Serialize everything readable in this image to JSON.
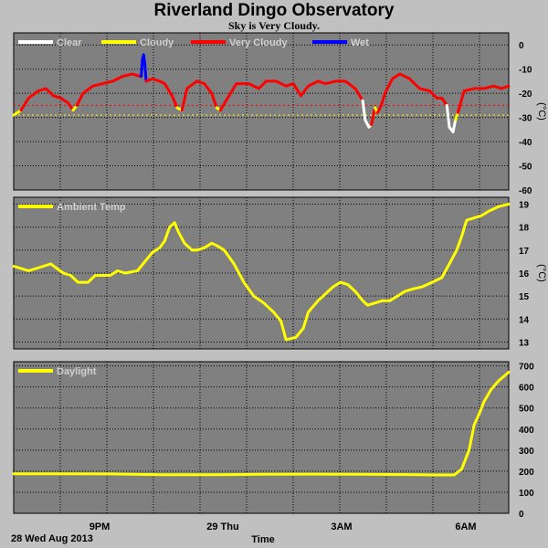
{
  "title": "Riverland Dingo Observatory",
  "subtitle": "Sky is Very Cloudy.",
  "footer": {
    "date_label": "28 Wed Aug 2013",
    "x_axis_title": "Time"
  },
  "colors": {
    "background": "#c0c0c0",
    "plot_bg": "#808080",
    "grid": "#000000",
    "clear": "#ffffff",
    "cloudy": "#ffff00",
    "very_cloudy": "#ff0000",
    "wet": "#0000ff"
  },
  "chart_data": [
    {
      "type": "line",
      "panel": "sky",
      "ylabel": "(°C)",
      "ylim": [
        -60,
        5
      ],
      "yticks": [
        0,
        -10,
        -20,
        -30,
        -40,
        -50,
        -60
      ],
      "legend": [
        "Clear",
        "Cloudy",
        "Very Cloudy",
        "Wet"
      ],
      "legend_colors": [
        "#ffffff",
        "#ffff00",
        "#ff0000",
        "#0000ff"
      ],
      "thresholds": [
        {
          "value": -25,
          "color": "#ff0000"
        },
        {
          "value": -29,
          "color": "#ffff00"
        }
      ],
      "series": [
        {
          "color": "#ffff00",
          "points": [
            [
              0,
              -29
            ],
            [
              0.3,
              -27
            ]
          ]
        },
        {
          "color": "#ff0000",
          "points": [
            [
              0.3,
              -27
            ],
            [
              0.6,
              -22
            ],
            [
              1.0,
              -19
            ],
            [
              1.3,
              -18
            ],
            [
              1.6,
              -21
            ],
            [
              1.9,
              -22
            ],
            [
              2.2,
              -24
            ],
            [
              2.4,
              -27
            ]
          ]
        },
        {
          "color": "#ffff00",
          "points": [
            [
              2.4,
              -27
            ],
            [
              2.55,
              -25
            ]
          ]
        },
        {
          "color": "#ff0000",
          "points": [
            [
              2.55,
              -25
            ],
            [
              2.8,
              -20
            ],
            [
              3.2,
              -17
            ],
            [
              3.6,
              -16
            ],
            [
              4.0,
              -15
            ],
            [
              4.4,
              -13
            ],
            [
              4.8,
              -12
            ],
            [
              5.1,
              -13
            ]
          ]
        },
        {
          "color": "#0000ff",
          "points": [
            [
              5.15,
              -13
            ],
            [
              5.2,
              -6
            ],
            [
              5.25,
              -4
            ],
            [
              5.3,
              -8
            ],
            [
              5.35,
              -15
            ]
          ]
        },
        {
          "color": "#ff0000",
          "points": [
            [
              5.35,
              -15
            ],
            [
              5.6,
              -14
            ],
            [
              5.9,
              -15
            ],
            [
              6.1,
              -16
            ],
            [
              6.4,
              -21
            ],
            [
              6.6,
              -26
            ]
          ]
        },
        {
          "color": "#ffff00",
          "points": [
            [
              6.6,
              -26
            ],
            [
              6.8,
              -27
            ]
          ]
        },
        {
          "color": "#ff0000",
          "points": [
            [
              6.8,
              -27
            ],
            [
              7.0,
              -18
            ],
            [
              7.4,
              -15
            ],
            [
              7.7,
              -16
            ],
            [
              8.0,
              -20
            ],
            [
              8.2,
              -26
            ]
          ]
        },
        {
          "color": "#ffff00",
          "points": [
            [
              8.2,
              -26
            ],
            [
              8.35,
              -27
            ]
          ]
        },
        {
          "color": "#ff0000",
          "points": [
            [
              8.35,
              -27
            ],
            [
              8.7,
              -21
            ],
            [
              9.0,
              -16
            ],
            [
              9.5,
              -16
            ],
            [
              9.9,
              -18
            ],
            [
              10.2,
              -15
            ],
            [
              10.6,
              -15
            ],
            [
              11.0,
              -17
            ],
            [
              11.3,
              -16
            ],
            [
              11.6,
              -21
            ],
            [
              11.9,
              -17
            ],
            [
              12.3,
              -15
            ],
            [
              12.6,
              -16
            ],
            [
              13.0,
              -15
            ],
            [
              13.4,
              -15
            ],
            [
              13.8,
              -18
            ],
            [
              14.1,
              -23
            ]
          ]
        },
        {
          "color": "#ffffff",
          "points": [
            [
              14.1,
              -23
            ],
            [
              14.2,
              -31
            ],
            [
              14.35,
              -34
            ],
            [
              14.45,
              -33
            ]
          ]
        },
        {
          "color": "#ff0000",
          "points": [
            [
              14.45,
              -33
            ],
            [
              14.6,
              -26
            ]
          ]
        },
        {
          "color": "#ffff00",
          "points": [
            [
              14.6,
              -26
            ],
            [
              14.7,
              -28
            ]
          ]
        },
        {
          "color": "#ff0000",
          "points": [
            [
              14.7,
              -28
            ],
            [
              14.85,
              -25
            ],
            [
              15.0,
              -20
            ],
            [
              15.3,
              -14
            ],
            [
              15.6,
              -12
            ],
            [
              16.0,
              -14
            ],
            [
              16.4,
              -18
            ],
            [
              16.8,
              -19
            ],
            [
              17.1,
              -22
            ],
            [
              17.3,
              -22
            ],
            [
              17.5,
              -25
            ]
          ]
        },
        {
          "color": "#ffffff",
          "points": [
            [
              17.5,
              -25
            ],
            [
              17.6,
              -34
            ],
            [
              17.75,
              -36
            ],
            [
              17.85,
              -31
            ]
          ]
        },
        {
          "color": "#ffff00",
          "points": [
            [
              17.85,
              -31
            ],
            [
              17.95,
              -28
            ]
          ]
        },
        {
          "color": "#ff0000",
          "points": [
            [
              17.95,
              -28
            ],
            [
              18.2,
              -19
            ],
            [
              18.6,
              -18
            ],
            [
              19.0,
              -18
            ],
            [
              19.4,
              -17
            ],
            [
              19.7,
              -18
            ],
            [
              20.0,
              -17
            ]
          ]
        }
      ]
    },
    {
      "type": "line",
      "panel": "ambient",
      "ylabel": "(°C)",
      "ylim": [
        12.7,
        19.3
      ],
      "yticks": [
        19,
        18,
        17,
        16,
        15,
        14,
        13
      ],
      "legend": [
        "Ambient Temp"
      ],
      "legend_colors": [
        "#ffff00"
      ],
      "series": [
        {
          "color": "#ffff00",
          "points": [
            [
              0,
              16.3
            ],
            [
              0.6,
              16.1
            ],
            [
              1.2,
              16.3
            ],
            [
              1.5,
              16.4
            ],
            [
              2.0,
              16.0
            ],
            [
              2.3,
              15.9
            ],
            [
              2.6,
              15.6
            ],
            [
              3.0,
              15.6
            ],
            [
              3.3,
              15.9
            ],
            [
              3.6,
              15.9
            ],
            [
              3.9,
              15.9
            ],
            [
              4.2,
              16.1
            ],
            [
              4.5,
              16.0
            ],
            [
              5.0,
              16.1
            ],
            [
              5.3,
              16.5
            ],
            [
              5.6,
              16.9
            ],
            [
              5.9,
              17.1
            ],
            [
              6.1,
              17.4
            ],
            [
              6.3,
              18.0
            ],
            [
              6.5,
              18.2
            ],
            [
              6.65,
              17.8
            ],
            [
              6.9,
              17.3
            ],
            [
              7.2,
              17.0
            ],
            [
              7.4,
              17.0
            ],
            [
              7.7,
              17.1
            ],
            [
              8.0,
              17.3
            ],
            [
              8.2,
              17.2
            ],
            [
              8.5,
              17.0
            ],
            [
              8.9,
              16.4
            ],
            [
              9.3,
              15.6
            ],
            [
              9.7,
              15.0
            ],
            [
              10.1,
              14.7
            ],
            [
              10.5,
              14.3
            ],
            [
              10.8,
              13.9
            ],
            [
              11.0,
              13.1
            ],
            [
              11.4,
              13.2
            ],
            [
              11.7,
              13.6
            ],
            [
              11.9,
              14.3
            ],
            [
              12.3,
              14.8
            ],
            [
              12.6,
              15.1
            ],
            [
              12.9,
              15.4
            ],
            [
              13.2,
              15.6
            ],
            [
              13.5,
              15.5
            ],
            [
              13.8,
              15.2
            ],
            [
              14.1,
              14.8
            ],
            [
              14.3,
              14.6
            ],
            [
              14.6,
              14.7
            ],
            [
              14.9,
              14.8
            ],
            [
              15.2,
              14.8
            ],
            [
              15.5,
              15.0
            ],
            [
              15.8,
              15.2
            ],
            [
              16.1,
              15.3
            ],
            [
              16.5,
              15.4
            ],
            [
              16.9,
              15.6
            ],
            [
              17.3,
              15.8
            ],
            [
              17.6,
              16.4
            ],
            [
              17.9,
              17.0
            ],
            [
              18.1,
              17.6
            ],
            [
              18.3,
              18.3
            ],
            [
              18.6,
              18.4
            ],
            [
              18.9,
              18.5
            ],
            [
              19.2,
              18.7
            ],
            [
              19.6,
              18.9
            ],
            [
              20.0,
              19.0
            ]
          ]
        }
      ]
    },
    {
      "type": "line",
      "panel": "daylight",
      "ylim": [
        0,
        720
      ],
      "yticks": [
        700,
        600,
        500,
        400,
        300,
        200,
        100,
        0
      ],
      "legend": [
        "Daylight"
      ],
      "legend_colors": [
        "#ffff00"
      ],
      "series": [
        {
          "color": "#ffff00",
          "points": [
            [
              0,
              188
            ],
            [
              2.0,
              188
            ],
            [
              4.0,
              187
            ],
            [
              6.0,
              183
            ],
            [
              8.0,
              183
            ],
            [
              10.0,
              185
            ],
            [
              12.0,
              186
            ],
            [
              14.0,
              185
            ],
            [
              16.0,
              184
            ],
            [
              17.0,
              182
            ],
            [
              17.8,
              182
            ],
            [
              18.1,
              210
            ],
            [
              18.4,
              300
            ],
            [
              18.6,
              420
            ],
            [
              18.8,
              470
            ],
            [
              19.0,
              530
            ],
            [
              19.3,
              590
            ],
            [
              19.6,
              630
            ],
            [
              20.0,
              670
            ]
          ]
        }
      ]
    }
  ],
  "x_axis": {
    "start_hour": 19,
    "end_hour": 8,
    "tick_labels": [
      {
        "hour": 2,
        "label": "9PM"
      },
      {
        "hour": 5,
        "label": "29 Thu"
      },
      {
        "hour": 8,
        "label": "3AM"
      },
      {
        "hour": 11,
        "label": "6AM"
      }
    ]
  }
}
